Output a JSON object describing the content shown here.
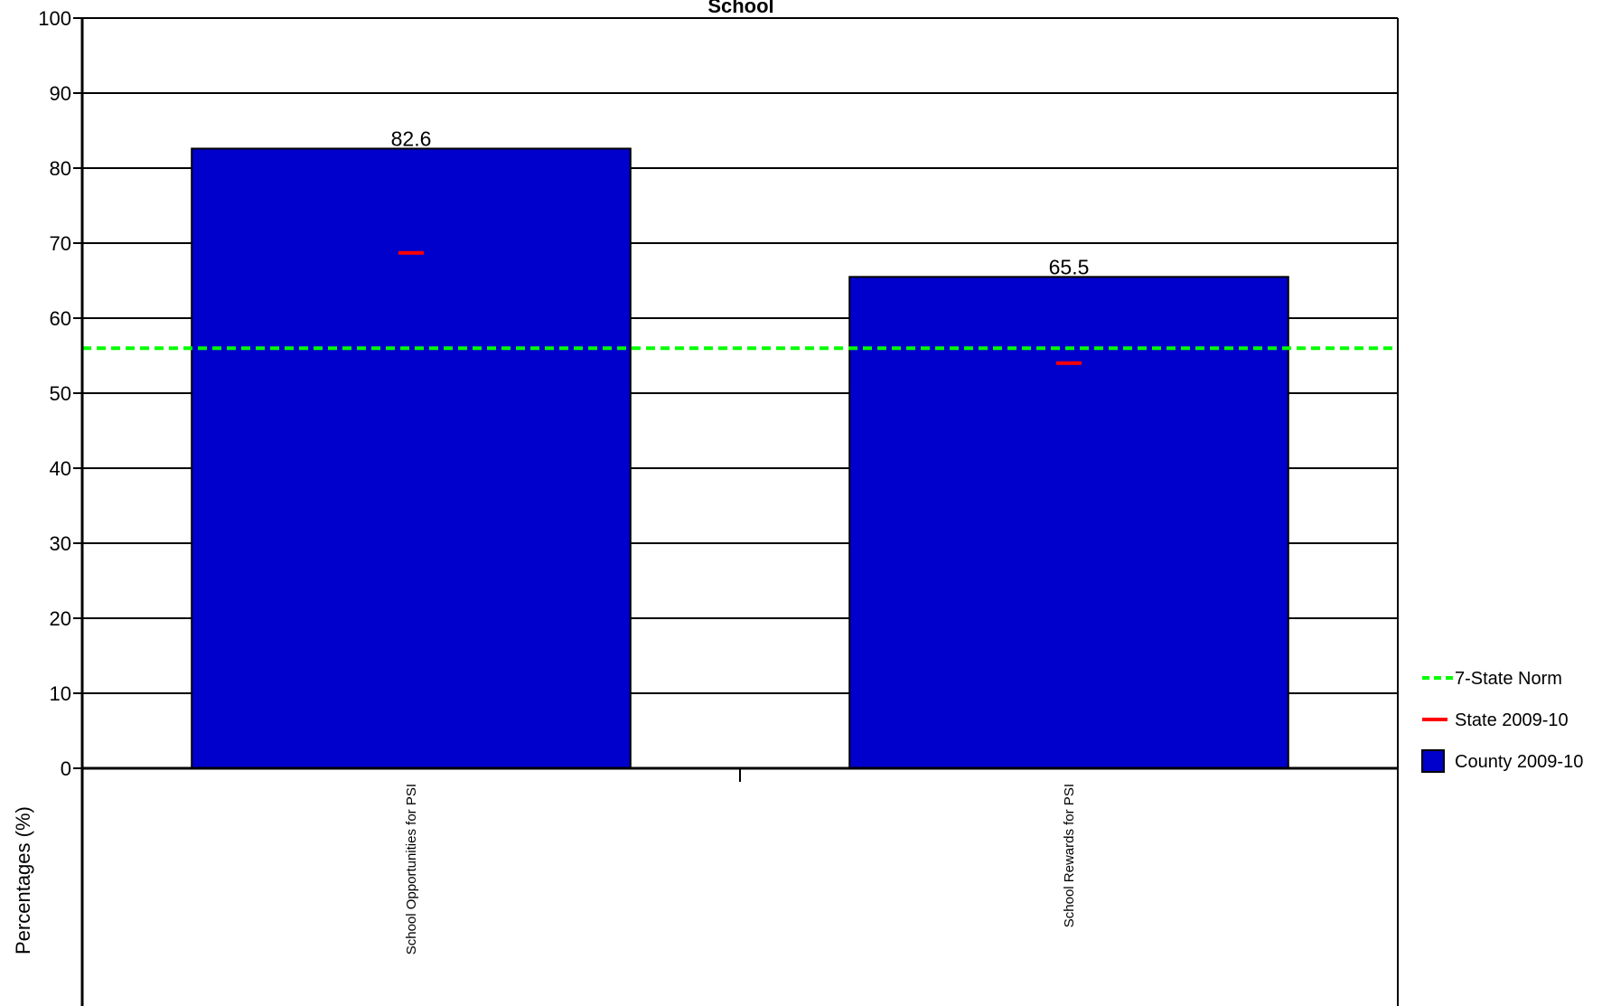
{
  "chart_data": {
    "type": "bar",
    "title": "School",
    "xlabel": "",
    "ylabel": "Percentages (%)",
    "ylim": [
      0,
      100
    ],
    "yticks": [
      0,
      10,
      20,
      30,
      40,
      50,
      60,
      70,
      80,
      90,
      100
    ],
    "categories": [
      "School Opportunities for PSI",
      "School Rewards for PSI"
    ],
    "series": [
      {
        "name": "County 2009-10",
        "kind": "bar",
        "color": "#0000cc",
        "values": [
          82.6,
          65.5
        ],
        "labels": [
          "82.6",
          "65.5"
        ]
      },
      {
        "name": "State 2009-10",
        "kind": "marker",
        "color": "#ff0000",
        "values": [
          68.7,
          54.0
        ]
      },
      {
        "name": "7-State Norm",
        "kind": "reference-line",
        "color": "#00ff00",
        "value": 56
      }
    ],
    "grid": true,
    "legend": {
      "position": "right-bottom",
      "items": [
        {
          "label": "7-State Norm",
          "style": "dashed-line",
          "color": "#00ff00"
        },
        {
          "label": "State 2009-10",
          "style": "line",
          "color": "#ff0000"
        },
        {
          "label": "County 2009-10",
          "style": "box",
          "color": "#0000cc"
        }
      ]
    }
  }
}
